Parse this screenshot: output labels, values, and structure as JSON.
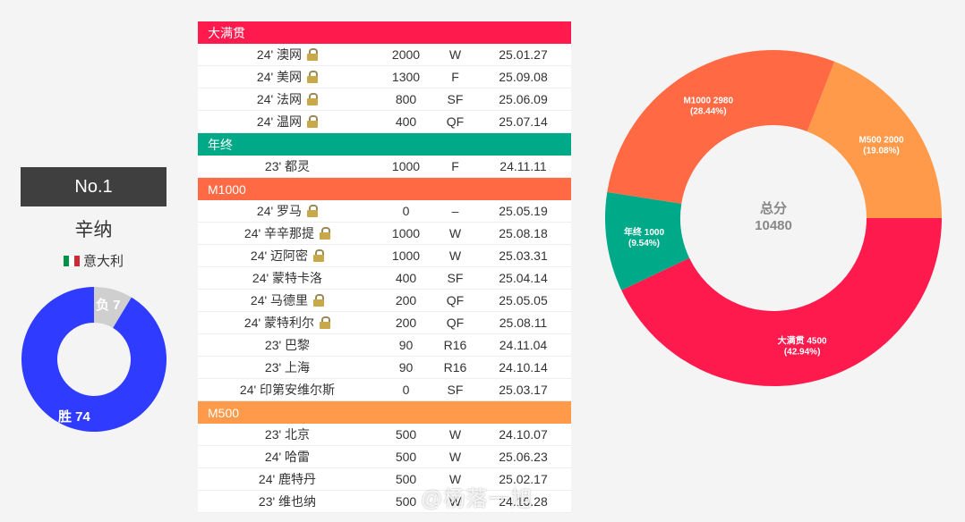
{
  "player": {
    "rank": "No.1",
    "name": "辛纳",
    "country": "意大利",
    "flag_colors": [
      "#009246",
      "#ffffff",
      "#ce2b37"
    ]
  },
  "win_loss": {
    "wins_label": "胜 74",
    "losses_label": "负 7",
    "wins": 74,
    "losses": 7,
    "win_color": "#2f3cff",
    "loss_color": "#cfcfcf"
  },
  "sections": [
    {
      "title": "大满贯",
      "color": "#ff1a4d",
      "rows": [
        {
          "event": "24' 澳网",
          "locked": true,
          "points": "2000",
          "result": "W",
          "date": "25.01.27"
        },
        {
          "event": "24' 美网",
          "locked": true,
          "points": "1300",
          "result": "F",
          "date": "25.09.08"
        },
        {
          "event": "24' 法网",
          "locked": true,
          "points": "800",
          "result": "SF",
          "date": "25.06.09"
        },
        {
          "event": "24' 温网",
          "locked": true,
          "points": "400",
          "result": "QF",
          "date": "25.07.14"
        }
      ]
    },
    {
      "title": "年终",
      "color": "#00aa88",
      "rows": [
        {
          "event": "23' 都灵",
          "locked": false,
          "points": "1000",
          "result": "F",
          "date": "24.11.11"
        }
      ]
    },
    {
      "title": "M1000",
      "color": "#ff6a45",
      "rows": [
        {
          "event": "24' 罗马",
          "locked": true,
          "points": "0",
          "result": "–",
          "date": "25.05.19"
        },
        {
          "event": "24' 辛辛那提",
          "locked": true,
          "points": "1000",
          "result": "W",
          "date": "25.08.18"
        },
        {
          "event": "24' 迈阿密",
          "locked": true,
          "points": "1000",
          "result": "W",
          "date": "25.03.31"
        },
        {
          "event": "24' 蒙特卡洛",
          "locked": false,
          "points": "400",
          "result": "SF",
          "date": "25.04.14"
        },
        {
          "event": "24' 马德里",
          "locked": true,
          "points": "200",
          "result": "QF",
          "date": "25.05.05"
        },
        {
          "event": "24' 蒙特利尔",
          "locked": true,
          "points": "200",
          "result": "QF",
          "date": "25.08.11"
        },
        {
          "event": "23' 巴黎",
          "locked": false,
          "points": "90",
          "result": "R16",
          "date": "24.11.04"
        },
        {
          "event": "23' 上海",
          "locked": false,
          "points": "90",
          "result": "R16",
          "date": "24.10.14"
        },
        {
          "event": "24' 印第安维尔斯",
          "locked": false,
          "points": "0",
          "result": "SF",
          "date": "25.03.17"
        }
      ]
    },
    {
      "title": "M500",
      "color": "#ff9a4a",
      "rows": [
        {
          "event": "23' 北京",
          "locked": false,
          "points": "500",
          "result": "W",
          "date": "24.10.07"
        },
        {
          "event": "24' 哈雷",
          "locked": false,
          "points": "500",
          "result": "W",
          "date": "25.06.23"
        },
        {
          "event": "24' 鹿特丹",
          "locked": false,
          "points": "500",
          "result": "W",
          "date": "25.02.17"
        },
        {
          "event": "23' 维也纳",
          "locked": false,
          "points": "500",
          "result": "W",
          "date": "24.10.28"
        }
      ]
    }
  ],
  "chart_data": {
    "type": "pie",
    "center_title": "总分",
    "center_value": "10480",
    "slices": [
      {
        "name": "大满贯",
        "value": 4500,
        "label": "大满贯 4500",
        "pct": "(42.94%)",
        "color": "#ff1a4d"
      },
      {
        "name": "年终",
        "value": 1000,
        "label": "年终 1000",
        "pct": "(9.54%)",
        "color": "#00aa88"
      },
      {
        "name": "M1000",
        "value": 2980,
        "label": "M1000 2980",
        "pct": "(28.44%)",
        "color": "#ff6a45"
      },
      {
        "name": "M500",
        "value": 2000,
        "label": "M500 2000",
        "pct": "(19.08%)",
        "color": "#ff9a4a"
      }
    ]
  },
  "watermark": "@杨落一旭"
}
